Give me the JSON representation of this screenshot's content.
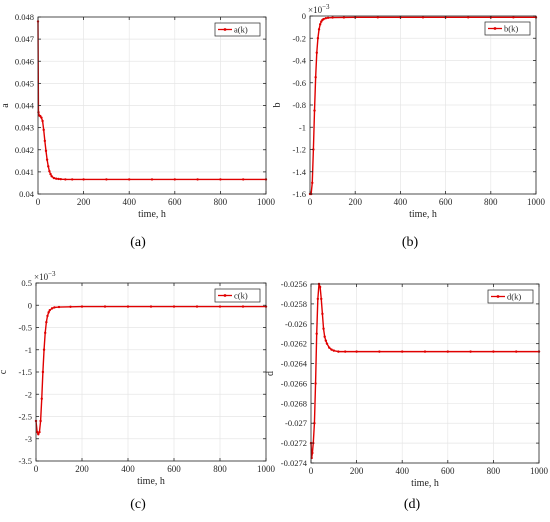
{
  "colors": {
    "series": "#e00000",
    "grid": "#e6e6e6",
    "axis": "#262626",
    "text": "#262626"
  },
  "chart_data": [
    {
      "type": "line",
      "panel": "a",
      "caption": "(a)",
      "xlabel": "time, h",
      "ylabel": "a",
      "multiplier": "",
      "legend": "top-right",
      "grid": true,
      "xlim": [
        0,
        1000
      ],
      "ylim": [
        0.04,
        0.048
      ],
      "xticks": [
        0,
        200,
        400,
        600,
        800,
        1000
      ],
      "xtick_labels": [
        "0",
        "200",
        "400",
        "600",
        "800",
        "1000"
      ],
      "yticks": [
        0.04,
        0.041,
        0.042,
        0.043,
        0.044,
        0.045,
        0.046,
        0.047,
        0.048
      ],
      "ytick_labels": [
        "0.04",
        "0.041",
        "0.042",
        "0.043",
        "0.044",
        "0.045",
        "0.046",
        "0.047",
        "0.048"
      ],
      "series": [
        {
          "name": "a(k)",
          "x": [
            0,
            2,
            5,
            10,
            15,
            20,
            25,
            30,
            35,
            40,
            45,
            50,
            55,
            60,
            70,
            80,
            90,
            100,
            120,
            150,
            200,
            300,
            400,
            500,
            600,
            700,
            800,
            900,
            1000
          ],
          "y": [
            0.0478,
            0.0437,
            0.04355,
            0.04352,
            0.04345,
            0.0433,
            0.0429,
            0.0424,
            0.04195,
            0.04155,
            0.04125,
            0.04103,
            0.0409,
            0.0408,
            0.04072,
            0.04069,
            0.04068,
            0.04067,
            0.04066,
            0.04066,
            0.04066,
            0.04066,
            0.04066,
            0.04066,
            0.04066,
            0.04066,
            0.04066,
            0.04066,
            0.04066
          ]
        }
      ]
    },
    {
      "type": "line",
      "panel": "b",
      "caption": "(b)",
      "xlabel": "time, h",
      "ylabel": "b",
      "multiplier": "×10",
      "multiplier_exp": "−3",
      "legend": "top-right",
      "grid": true,
      "xlim": [
        0,
        1000
      ],
      "ylim": [
        -1.6,
        0
      ],
      "xticks": [
        0,
        200,
        400,
        600,
        800,
        1000
      ],
      "xtick_labels": [
        "0",
        "200",
        "400",
        "600",
        "800",
        "1000"
      ],
      "yticks": [
        -1.6,
        -1.4,
        -1.2,
        -1.0,
        -0.8,
        -0.6,
        -0.4,
        -0.2,
        0
      ],
      "ytick_labels": [
        "-1.6",
        "-1.4",
        "-1.2",
        "-1",
        "-0.8",
        "-0.6",
        "-0.4",
        "-0.2",
        "0"
      ],
      "series": [
        {
          "name": "b(k)",
          "x": [
            0,
            5,
            10,
            15,
            20,
            25,
            30,
            35,
            40,
            45,
            50,
            55,
            60,
            70,
            80,
            100,
            150,
            200,
            300,
            400,
            500,
            600,
            700,
            800,
            900,
            1000
          ],
          "y": [
            -1.6,
            -1.6,
            -1.5,
            -1.2,
            -0.85,
            -0.55,
            -0.33,
            -0.2,
            -0.12,
            -0.075,
            -0.05,
            -0.035,
            -0.028,
            -0.02,
            -0.016,
            -0.014,
            -0.013,
            -0.012,
            -0.012,
            -0.012,
            -0.012,
            -0.012,
            -0.012,
            -0.012,
            -0.012,
            -0.012
          ]
        }
      ]
    },
    {
      "type": "line",
      "panel": "c",
      "caption": "(c)",
      "xlabel": "time, h",
      "ylabel": "c",
      "multiplier": "×10",
      "multiplier_exp": "−3",
      "legend": "top-right",
      "grid": true,
      "xlim": [
        0,
        1000
      ],
      "ylim": [
        -3.5,
        0.5
      ],
      "xticks": [
        0,
        200,
        400,
        600,
        800,
        1000
      ],
      "xtick_labels": [
        "0",
        "200",
        "400",
        "600",
        "800",
        "1000"
      ],
      "yticks": [
        -3.5,
        -3.0,
        -2.5,
        -2.0,
        -1.5,
        -1.0,
        -0.5,
        0,
        0.5
      ],
      "ytick_labels": [
        "-3.5",
        "-3",
        "-2.5",
        "-2",
        "-1.5",
        "-1",
        "-0.5",
        "0",
        "0.5"
      ],
      "series": [
        {
          "name": "c(k)",
          "x": [
            0,
            5,
            10,
            15,
            20,
            25,
            30,
            35,
            40,
            45,
            50,
            55,
            60,
            70,
            80,
            100,
            150,
            200,
            300,
            400,
            500,
            600,
            700,
            800,
            900,
            1000
          ],
          "y": [
            -2.6,
            -2.85,
            -2.9,
            -2.85,
            -2.6,
            -2.1,
            -1.5,
            -1.0,
            -0.62,
            -0.38,
            -0.24,
            -0.16,
            -0.11,
            -0.07,
            -0.05,
            -0.04,
            -0.035,
            -0.03,
            -0.03,
            -0.03,
            -0.03,
            -0.03,
            -0.03,
            -0.03,
            -0.03,
            -0.03
          ]
        }
      ]
    },
    {
      "type": "line",
      "panel": "d",
      "caption": "(d)",
      "xlabel": "time, h",
      "ylabel": "d",
      "multiplier": "",
      "legend": "top-right",
      "grid": true,
      "xlim": [
        0,
        1000
      ],
      "ylim": [
        -0.0274,
        -0.0256
      ],
      "xticks": [
        0,
        200,
        400,
        600,
        800,
        1000
      ],
      "xtick_labels": [
        "0",
        "200",
        "400",
        "600",
        "800",
        "1000"
      ],
      "yticks": [
        -0.0274,
        -0.0272,
        -0.027,
        -0.0268,
        -0.0266,
        -0.0264,
        -0.0262,
        -0.026,
        -0.0258,
        -0.0256
      ],
      "ytick_labels": [
        "-0.0274",
        "-0.0272",
        "-0.027",
        "-0.0268",
        "-0.0266",
        "-0.0264",
        "-0.0262",
        "-0.026",
        "-0.0258",
        "-0.0256"
      ],
      "series": [
        {
          "name": "d(k)",
          "x": [
            0,
            3,
            6,
            10,
            15,
            20,
            25,
            30,
            35,
            40,
            45,
            50,
            55,
            60,
            65,
            70,
            80,
            90,
            100,
            120,
            150,
            200,
            300,
            400,
            500,
            600,
            700,
            800,
            900,
            1000
          ],
          "y": [
            -0.0272,
            -0.02735,
            -0.0273,
            -0.0272,
            -0.027,
            -0.0266,
            -0.0261,
            -0.02575,
            -0.0256,
            -0.02563,
            -0.02575,
            -0.0259,
            -0.02605,
            -0.02613,
            -0.02617,
            -0.0262,
            -0.02624,
            -0.02626,
            -0.02627,
            -0.02628,
            -0.02628,
            -0.02628,
            -0.02628,
            -0.02628,
            -0.02628,
            -0.02628,
            -0.02628,
            -0.02628,
            -0.02628,
            -0.02628
          ]
        }
      ]
    }
  ]
}
